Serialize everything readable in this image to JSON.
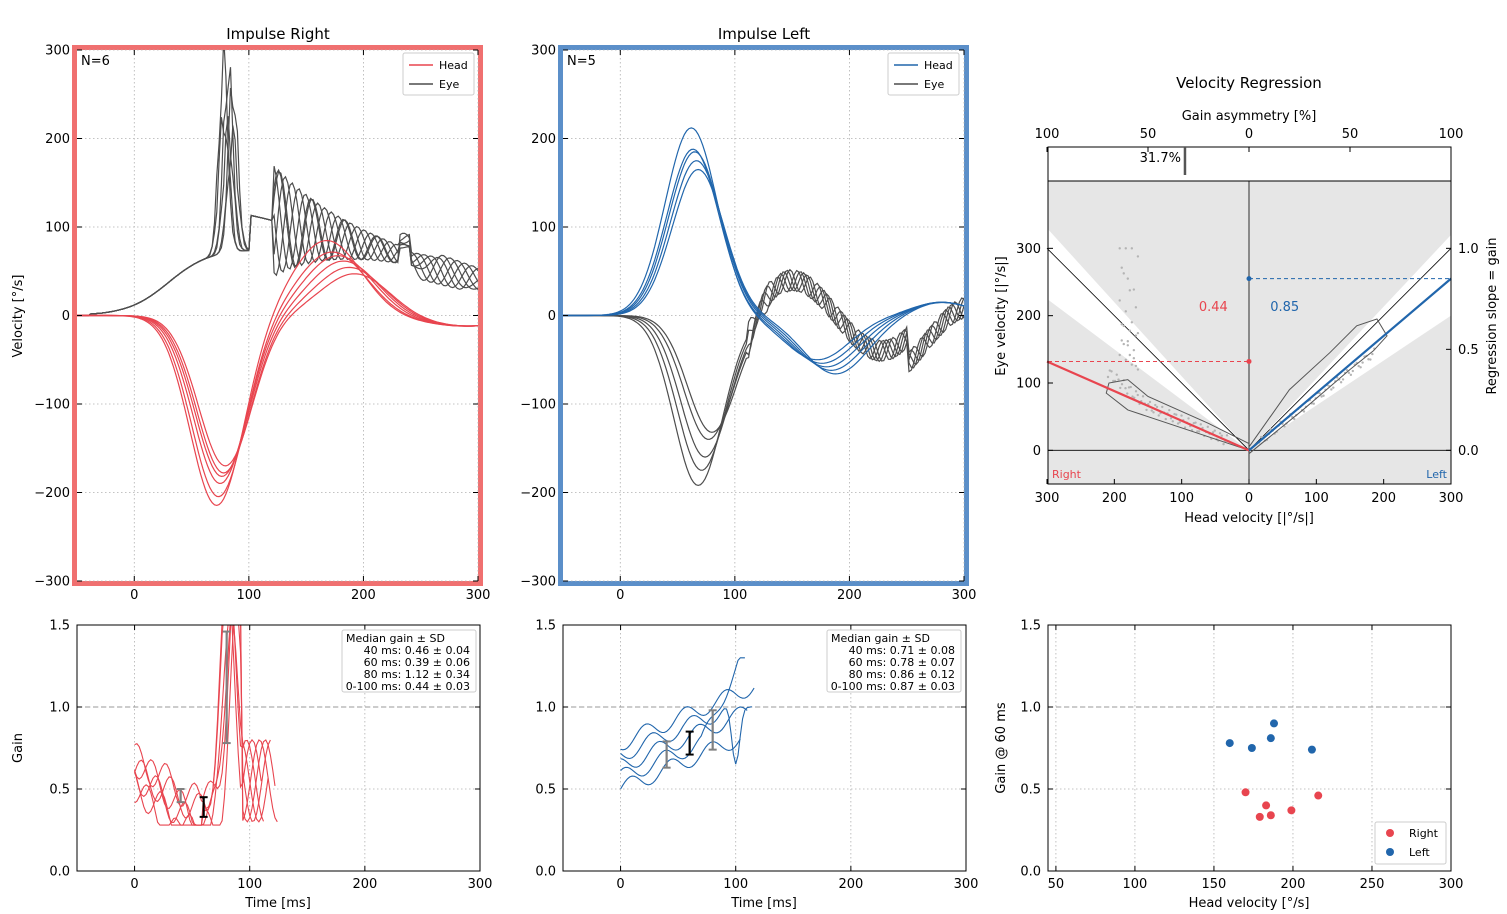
{
  "figure": {
    "width": 1507,
    "height": 914
  },
  "colors": {
    "right": "#e8454f",
    "left": "#2166ac",
    "eye": "#4d4d4d",
    "right_frame": "#f07070",
    "left_frame": "#5b8fc9",
    "region": "#e6e6e6",
    "scatter_gray": "#b4b4b4"
  },
  "chart_data": [
    {
      "id": "impulse-right",
      "type": "line",
      "title": "Impulse Right",
      "xlabel": "",
      "ylabel": "Velocity [°/s]",
      "xlim": [
        -50,
        300
      ],
      "ylim": [
        -300,
        300
      ],
      "xticks": [
        0,
        100,
        200,
        300
      ],
      "yticks": [
        -300,
        -200,
        -100,
        0,
        100,
        200,
        300
      ],
      "ytick_labels": [
        "−300",
        "−200",
        "−100",
        "0",
        "100",
        "200",
        "300"
      ],
      "n_label": "N=6",
      "legend": [
        "Head",
        "Eye"
      ],
      "head_peaks": [
        -215,
        -205,
        -190,
        -182,
        -178,
        -170
      ],
      "head_rebound": [
        85,
        72,
        68,
        62,
        55,
        48
      ],
      "eye_peaks": [
        300,
        290,
        270,
        240,
        225,
        215
      ]
    },
    {
      "id": "impulse-left",
      "type": "line",
      "title": "Impulse Left",
      "xlabel": "",
      "ylabel": "",
      "xlim": [
        -50,
        300
      ],
      "ylim": [
        -300,
        300
      ],
      "xticks": [
        0,
        100,
        200,
        300
      ],
      "yticks": [
        -300,
        -200,
        -100,
        0,
        100,
        200,
        300
      ],
      "ytick_labels": [
        "−300",
        "−200",
        "−100",
        "0",
        "100",
        "200",
        "300"
      ],
      "n_label": "N=5",
      "legend": [
        "Head",
        "Eye"
      ],
      "head_peaks": [
        212,
        188,
        185,
        175,
        165
      ],
      "eye_troughs": [
        -192,
        -175,
        -160,
        -140,
        -132
      ]
    },
    {
      "id": "velocity-regression",
      "type": "scatter",
      "title": "Velocity Regression",
      "xlabel": "Head velocity [|°/s|]",
      "ylabel": "Eye velocity [|°/s|]",
      "ylabel_right": "Regression slope = gain",
      "top_axis_label": "Gain asymmetry [%]",
      "xlim": [
        -300,
        300
      ],
      "ylim": [
        -50,
        400
      ],
      "xtick_labels": [
        "300",
        "200",
        "100",
        "0",
        "100",
        "200",
        "300"
      ],
      "yticks": [
        0,
        100,
        200,
        300
      ],
      "right_ticks": [
        "0.0",
        "0.5",
        "1.0"
      ],
      "top_ticks": [
        "100",
        "50",
        "0",
        "50",
        "100"
      ],
      "asymmetry": 31.7,
      "asymmetry_label": "31.7%",
      "gain_right": 0.44,
      "gain_right_label": "0.44",
      "gain_left": 0.85,
      "gain_left_label": "0.85",
      "corner_right": "Right",
      "corner_left": "Left"
    },
    {
      "id": "gain-right",
      "type": "line",
      "xlabel": "Time [ms]",
      "ylabel": "Gain",
      "xlim": [
        -50,
        300
      ],
      "ylim": [
        0,
        1.5
      ],
      "xticks": [
        0,
        100,
        200,
        300
      ],
      "yticks": [
        0.0,
        0.5,
        1.0,
        1.5
      ],
      "stats_title": "Median gain ± SD",
      "stats": [
        "40 ms: 0.46 ± 0.04",
        "60 ms: 0.39 ± 0.06",
        "80 ms: 1.12 ± 0.34",
        "0-100 ms: 0.44 ± 0.03"
      ],
      "errorbars": [
        {
          "x": 40,
          "median": 0.46,
          "sd": 0.04
        },
        {
          "x": 60,
          "median": 0.39,
          "sd": 0.06
        },
        {
          "x": 80,
          "median": 1.12,
          "sd": 0.34
        }
      ]
    },
    {
      "id": "gain-left",
      "type": "line",
      "xlabel": "Time [ms]",
      "ylabel": "",
      "xlim": [
        -50,
        300
      ],
      "ylim": [
        0,
        1.5
      ],
      "xticks": [
        0,
        100,
        200,
        300
      ],
      "yticks": [
        0.0,
        0.5,
        1.0,
        1.5
      ],
      "stats_title": "Median gain ± SD",
      "stats": [
        "40 ms: 0.71 ± 0.08",
        "60 ms: 0.78 ± 0.07",
        "80 ms: 0.86 ± 0.12",
        "0-100 ms: 0.87 ± 0.03"
      ],
      "errorbars": [
        {
          "x": 40,
          "median": 0.71,
          "sd": 0.08
        },
        {
          "x": 60,
          "median": 0.78,
          "sd": 0.07
        },
        {
          "x": 80,
          "median": 0.86,
          "sd": 0.12
        }
      ]
    },
    {
      "id": "gain-vs-velocity",
      "type": "scatter",
      "xlabel": "Head velocity [°/s]",
      "ylabel": "Gain @ 60 ms",
      "xlim": [
        45,
        300
      ],
      "ylim": [
        0,
        1.5
      ],
      "xticks": [
        50,
        100,
        150,
        200,
        250,
        300
      ],
      "yticks": [
        0.0,
        0.5,
        1.0,
        1.5
      ],
      "legend": [
        "Right",
        "Left"
      ],
      "right_points": [
        [
          170,
          0.48
        ],
        [
          179,
          0.33
        ],
        [
          183,
          0.4
        ],
        [
          186,
          0.34
        ],
        [
          199,
          0.37
        ],
        [
          216,
          0.46
        ]
      ],
      "left_points": [
        [
          160,
          0.78
        ],
        [
          174,
          0.75
        ],
        [
          186,
          0.81
        ],
        [
          188,
          0.9
        ],
        [
          212,
          0.74
        ]
      ]
    }
  ]
}
